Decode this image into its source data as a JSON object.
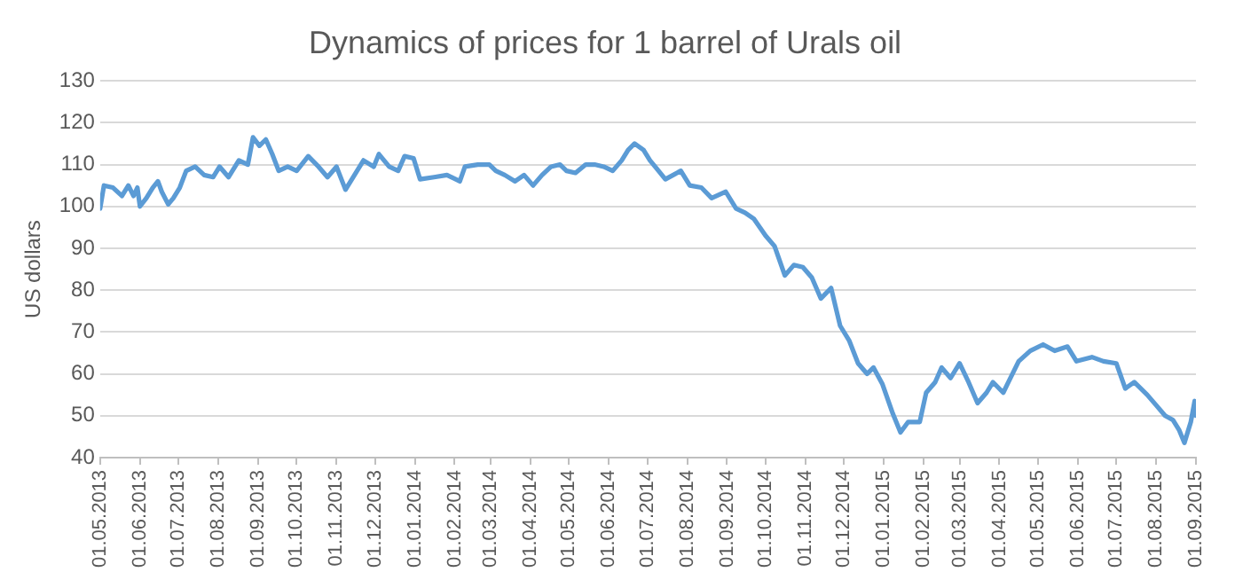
{
  "chart_data": {
    "type": "line",
    "title": "Dynamics of prices for 1 barrel of Urals oil",
    "ylabel": "US dollars",
    "x": [
      "2013-05-01",
      "2013-05-04",
      "2013-05-11",
      "2013-05-18",
      "2013-05-23",
      "2013-05-27",
      "2013-05-30",
      "2013-06-01",
      "2013-06-06",
      "2013-06-11",
      "2013-06-15",
      "2013-06-18",
      "2013-06-23",
      "2013-06-27",
      "2013-07-02",
      "2013-07-07",
      "2013-07-14",
      "2013-07-21",
      "2013-07-28",
      "2013-08-02",
      "2013-08-09",
      "2013-08-17",
      "2013-08-24",
      "2013-08-28",
      "2013-09-02",
      "2013-09-07",
      "2013-09-12",
      "2013-09-17",
      "2013-09-24",
      "2013-10-01",
      "2013-10-10",
      "2013-10-18",
      "2013-10-25",
      "2013-11-01",
      "2013-11-08",
      "2013-11-15",
      "2013-11-22",
      "2013-11-30",
      "2013-12-04",
      "2013-12-12",
      "2013-12-19",
      "2013-12-24",
      "2013-12-31",
      "2014-01-05",
      "2014-01-16",
      "2014-01-26",
      "2014-02-05",
      "2014-02-09",
      "2014-02-19",
      "2014-02-28",
      "2014-03-05",
      "2014-03-12",
      "2014-03-20",
      "2014-03-27",
      "2014-04-03",
      "2014-04-10",
      "2014-04-17",
      "2014-04-24",
      "2014-04-29",
      "2014-05-06",
      "2014-05-14",
      "2014-05-21",
      "2014-05-28",
      "2014-06-04",
      "2014-06-11",
      "2014-06-16",
      "2014-06-21",
      "2014-06-28",
      "2014-07-03",
      "2014-07-07",
      "2014-07-15",
      "2014-07-27",
      "2014-08-03",
      "2014-08-12",
      "2014-08-20",
      "2014-08-31",
      "2014-09-08",
      "2014-09-15",
      "2014-09-22",
      "2014-10-01",
      "2014-10-08",
      "2014-10-16",
      "2014-10-23",
      "2014-10-30",
      "2014-11-06",
      "2014-11-13",
      "2014-11-21",
      "2014-11-28",
      "2014-12-05",
      "2014-12-12",
      "2014-12-19",
      "2014-12-24",
      "2014-12-31",
      "2015-01-08",
      "2015-01-14",
      "2015-01-20",
      "2015-01-29",
      "2015-02-03",
      "2015-02-10",
      "2015-02-15",
      "2015-02-22",
      "2015-03-01",
      "2015-03-08",
      "2015-03-15",
      "2015-03-22",
      "2015-03-27",
      "2015-04-04",
      "2015-04-08",
      "2015-04-16",
      "2015-04-25",
      "2015-05-05",
      "2015-05-14",
      "2015-05-24",
      "2015-05-31",
      "2015-06-12",
      "2015-06-21",
      "2015-07-01",
      "2015-07-08",
      "2015-07-15",
      "2015-07-25",
      "2015-08-01",
      "2015-08-08",
      "2015-08-14",
      "2015-08-19",
      "2015-08-23",
      "2015-08-28",
      "2015-08-31",
      "2015-09-01"
    ],
    "series": [
      {
        "color": "#5b9bd5",
        "values": [
          99.5,
          105,
          104.5,
          102.5,
          105,
          102.5,
          104.5,
          100,
          102,
          104.5,
          106,
          103.5,
          100.5,
          102,
          104.5,
          108.5,
          109.5,
          107.5,
          107,
          109.5,
          107,
          111,
          110,
          116.5,
          114.5,
          116,
          112.5,
          108.5,
          109.5,
          108.5,
          112,
          109.5,
          107,
          109.5,
          104,
          107.5,
          111,
          109.5,
          112.5,
          109.5,
          108.5,
          112,
          111.5,
          106.5,
          107,
          107.5,
          106,
          109.5,
          110,
          110,
          108.5,
          107.5,
          106,
          107.5,
          105,
          107.5,
          109.5,
          110,
          108.5,
          108,
          110,
          110,
          109.5,
          108.5,
          111,
          113.5,
          115,
          113.5,
          111,
          109.5,
          106.5,
          108.5,
          105,
          104.5,
          102,
          103.5,
          99.5,
          98.5,
          97,
          93,
          90.5,
          83.5,
          86,
          85.5,
          83,
          78,
          80.5,
          71.5,
          68,
          62.5,
          60,
          61.5,
          57.5,
          50.5,
          46,
          48.5,
          48.5,
          55.5,
          58,
          61.5,
          59,
          62.5,
          58,
          53,
          55.5,
          58,
          55.5,
          58,
          63,
          65.5,
          67,
          65.5,
          66.5,
          63,
          64,
          63,
          62.5,
          56.5,
          58,
          55,
          52.5,
          50,
          49,
          46.5,
          43.5,
          48.5,
          53.5,
          50
        ]
      }
    ],
    "xlim": [
      "2013-05-01",
      "2015-09-01"
    ],
    "xticks": [
      {
        "value": "2013-05-01",
        "label": "01.05.2013"
      },
      {
        "value": "2013-06-01",
        "label": "01.06.2013"
      },
      {
        "value": "2013-07-01",
        "label": "01.07.2013"
      },
      {
        "value": "2013-08-01",
        "label": "01.08.2013"
      },
      {
        "value": "2013-09-01",
        "label": "01.09.2013"
      },
      {
        "value": "2013-10-01",
        "label": "01.10.2013"
      },
      {
        "value": "2013-11-01",
        "label": "01.11.2013"
      },
      {
        "value": "2013-12-01",
        "label": "01.12.2013"
      },
      {
        "value": "2014-01-01",
        "label": "01.01.2014"
      },
      {
        "value": "2014-02-01",
        "label": "01.02.2014"
      },
      {
        "value": "2014-03-01",
        "label": "01.03.2014"
      },
      {
        "value": "2014-04-01",
        "label": "01.04.2014"
      },
      {
        "value": "2014-05-01",
        "label": "01.05.2014"
      },
      {
        "value": "2014-06-01",
        "label": "01.06.2014"
      },
      {
        "value": "2014-07-01",
        "label": "01.07.2014"
      },
      {
        "value": "2014-08-01",
        "label": "01.08.2014"
      },
      {
        "value": "2014-09-01",
        "label": "01.09.2014"
      },
      {
        "value": "2014-10-01",
        "label": "01.10.2014"
      },
      {
        "value": "2014-11-01",
        "label": "01.11.2014"
      },
      {
        "value": "2014-12-01",
        "label": "01.12.2014"
      },
      {
        "value": "2015-01-01",
        "label": "01.01.2015"
      },
      {
        "value": "2015-02-01",
        "label": "01.02.2015"
      },
      {
        "value": "2015-03-01",
        "label": "01.03.2015"
      },
      {
        "value": "2015-04-01",
        "label": "01.04.2015"
      },
      {
        "value": "2015-05-01",
        "label": "01.05.2015"
      },
      {
        "value": "2015-06-01",
        "label": "01.06.2015"
      },
      {
        "value": "2015-07-01",
        "label": "01.07.2015"
      },
      {
        "value": "2015-08-01",
        "label": "01.08.2015"
      },
      {
        "value": "2015-09-01",
        "label": "01.09.2015"
      }
    ],
    "ylim": [
      40,
      130
    ],
    "yticks": [
      40,
      50,
      60,
      70,
      80,
      90,
      100,
      110,
      120,
      130
    ],
    "grid": "y",
    "legend": false,
    "marker": "none",
    "line_style": "solid"
  }
}
